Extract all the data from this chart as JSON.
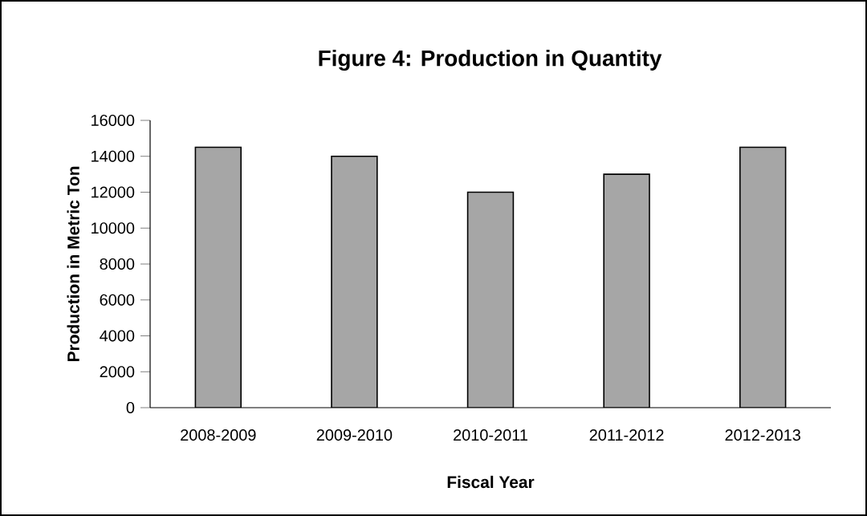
{
  "chart_data": {
    "type": "bar",
    "title": "Figure 4: Production in Quantity",
    "xlabel": "Fiscal Year",
    "ylabel": "Production in Metric Ton",
    "categories": [
      "2008-2009",
      "2009-2010",
      "2010-2011",
      "2011-2012",
      "2012-2013"
    ],
    "values": [
      14500,
      14000,
      12000,
      13000,
      14500
    ],
    "color": "#a6a6a6",
    "ylim": [
      0,
      16000
    ],
    "yticks": [
      0,
      2000,
      4000,
      6000,
      8000,
      10000,
      12000,
      14000,
      16000
    ],
    "grid": false
  }
}
